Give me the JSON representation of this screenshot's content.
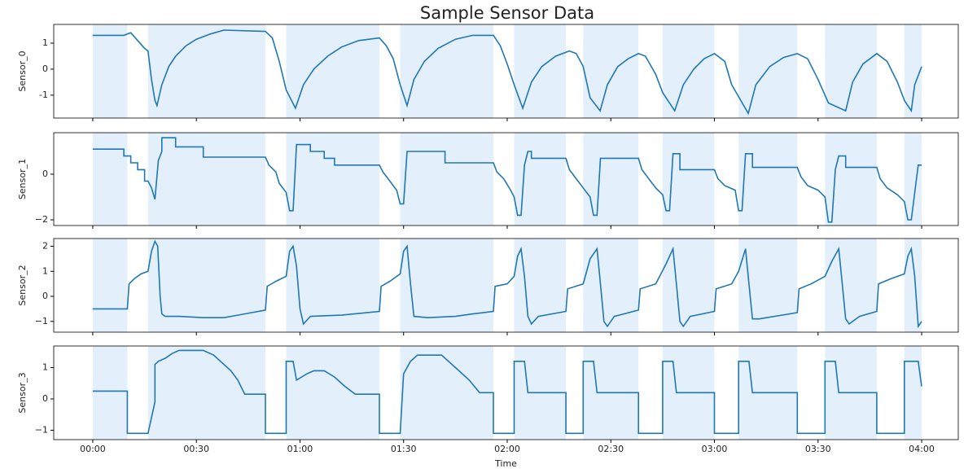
{
  "chart_data": [
    {
      "type": "line",
      "title": "Sample Sensor Data",
      "y_label": "Sensor_0",
      "color": "#1f77b4",
      "shade_color": "#e3f0fc",
      "xlim": [
        -11.3,
        250.6
      ],
      "xticks": [
        0,
        30,
        60,
        90,
        120,
        150,
        180,
        210,
        240
      ],
      "ylim": [
        -1.88,
        1.72
      ],
      "yticks": [
        -1,
        0,
        1
      ],
      "shaded_regions": [
        [
          0,
          10
        ],
        [
          16,
          50
        ],
        [
          56,
          83
        ],
        [
          89,
          116
        ],
        [
          122,
          137
        ],
        [
          142,
          158
        ],
        [
          165,
          180
        ],
        [
          187,
          204
        ],
        [
          212,
          227
        ],
        [
          235,
          240
        ]
      ],
      "x": [
        0,
        9,
        11,
        13,
        15,
        16,
        17,
        18,
        18.6,
        20,
        22,
        24,
        27,
        30,
        34,
        38,
        50,
        52,
        54,
        56,
        58.7,
        61,
        64,
        68,
        72,
        77,
        83,
        85,
        87,
        89,
        91,
        93,
        96,
        100,
        105,
        110,
        116,
        118,
        120,
        122,
        124.5,
        127,
        130,
        134,
        138,
        140,
        142,
        144,
        146.9,
        149,
        152,
        155,
        158,
        160,
        163,
        165,
        168.5,
        171,
        174,
        177,
        180,
        183,
        185,
        189.8,
        192,
        196,
        200,
        204,
        207,
        210,
        213,
        218,
        220,
        223,
        227,
        230,
        233,
        235,
        237,
        238,
        240
      ],
      "values": [
        1.3,
        1.3,
        1.4,
        1.1,
        0.8,
        0.7,
        -0.4,
        -1.2,
        -1.4,
        -0.6,
        0.1,
        0.5,
        0.9,
        1.15,
        1.35,
        1.5,
        1.45,
        1.2,
        0.3,
        -0.8,
        -1.5,
        -0.6,
        0,
        0.5,
        0.85,
        1.1,
        1.2,
        0.9,
        0.4,
        -0.6,
        -1.4,
        -0.4,
        0.3,
        0.8,
        1.15,
        1.3,
        1.3,
        0.9,
        0.2,
        -0.6,
        -1.5,
        -0.5,
        0.1,
        0.5,
        0.7,
        0.6,
        0.1,
        -1.1,
        -1.6,
        -0.6,
        0.1,
        0.4,
        0.6,
        0.5,
        -0.2,
        -0.9,
        -1.6,
        -0.6,
        0,
        0.4,
        0.6,
        0.3,
        -0.6,
        -1.7,
        -0.6,
        0.1,
        0.45,
        0.6,
        0.4,
        -0.4,
        -1.3,
        -1.6,
        -0.5,
        0.2,
        0.6,
        0.3,
        -0.5,
        -1.2,
        -1.6,
        -0.6,
        0.1
      ]
    },
    {
      "type": "line",
      "y_label": "Sensor_1",
      "color": "#1f77b4",
      "shade_color": "#e3f0fc",
      "xlim": [
        -11.3,
        250.6
      ],
      "xticks": [
        0,
        30,
        60,
        90,
        120,
        150,
        180,
        210,
        240
      ],
      "ylim": [
        -2.25,
        1.82
      ],
      "yticks": [
        {
          "value": -2,
          "label": "−2"
        },
        0
      ],
      "shaded_regions": [
        [
          0,
          10
        ],
        [
          16,
          50
        ],
        [
          56,
          83
        ],
        [
          89,
          116
        ],
        [
          122,
          137
        ],
        [
          142,
          158
        ],
        [
          165,
          180
        ],
        [
          187,
          204
        ],
        [
          212,
          227
        ],
        [
          235,
          240
        ]
      ],
      "x": [
        0,
        9,
        9,
        11,
        11,
        13,
        13,
        15,
        15,
        16,
        17,
        18,
        19,
        20,
        20,
        24,
        24,
        32,
        32,
        50,
        51,
        53,
        54,
        56,
        57,
        58,
        59,
        63,
        63,
        67,
        67,
        70,
        70,
        83,
        84,
        86,
        88,
        89,
        90,
        91,
        102,
        102,
        116,
        117,
        119,
        121,
        122,
        123,
        124,
        125,
        126,
        127,
        127,
        137,
        138,
        140,
        142,
        144,
        145,
        146,
        147,
        158,
        159,
        161,
        163,
        165,
        166,
        167,
        168,
        170,
        170,
        180,
        181,
        183,
        186,
        187,
        188,
        189,
        191,
        191,
        204,
        205,
        207,
        210,
        212,
        213,
        214,
        215,
        216,
        218,
        218,
        227,
        228,
        230,
        233,
        235,
        236,
        237,
        239,
        240
      ],
      "values": [
        1.1,
        1.1,
        0.8,
        0.8,
        0.5,
        0.5,
        0.2,
        0.2,
        -0.3,
        -0.3,
        -0.6,
        -1.1,
        0.6,
        1.0,
        1.6,
        1.6,
        1.2,
        1.2,
        0.75,
        0.75,
        0.4,
        0.1,
        -0.4,
        -0.8,
        -1.6,
        -1.6,
        1.3,
        1.3,
        1.0,
        1.0,
        0.7,
        0.7,
        0.4,
        0.4,
        0.1,
        -0.3,
        -0.7,
        -1.3,
        -1.3,
        1.0,
        1.0,
        0.5,
        0.5,
        0.1,
        -0.2,
        -0.7,
        -1.0,
        -1.8,
        -1.8,
        0.4,
        1.0,
        1.0,
        0.7,
        0.7,
        0.2,
        -0.2,
        -0.6,
        -1.0,
        -1.8,
        -1.8,
        0.7,
        0.7,
        0.2,
        -0.2,
        -0.6,
        -0.9,
        -1.6,
        -1.6,
        0.9,
        0.9,
        0.2,
        0.2,
        -0.2,
        -0.5,
        -0.7,
        -1.6,
        -1.6,
        0.9,
        0.9,
        0.3,
        0.3,
        -0.1,
        -0.5,
        -0.7,
        -1.0,
        -2.1,
        -2.1,
        0.2,
        0.8,
        0.8,
        0.3,
        0.3,
        -0.2,
        -0.6,
        -0.9,
        -1.2,
        -2.0,
        -2.0,
        0.4,
        0.4
      ]
    },
    {
      "type": "line",
      "y_label": "Sensor_2",
      "color": "#1f77b4",
      "shade_color": "#e3f0fc",
      "xlim": [
        -11.3,
        250.6
      ],
      "xticks": [
        0,
        30,
        60,
        90,
        120,
        150,
        180,
        210,
        240
      ],
      "ylim": [
        -1.43,
        2.31
      ],
      "yticks": [
        {
          "value": -1,
          "label": "−1"
        },
        0,
        1,
        2
      ],
      "shaded_regions": [
        [
          0,
          10
        ],
        [
          16,
          50
        ],
        [
          56,
          83
        ],
        [
          89,
          116
        ],
        [
          122,
          137
        ],
        [
          142,
          158
        ],
        [
          165,
          180
        ],
        [
          187,
          204
        ],
        [
          212,
          227
        ],
        [
          235,
          240
        ]
      ],
      "x": [
        0,
        10,
        10.5,
        12,
        14,
        16,
        17,
        18,
        18.8,
        19.5,
        20,
        21,
        25,
        32,
        38,
        42,
        46,
        50,
        50.5,
        53,
        56,
        57,
        58,
        59,
        60,
        61,
        63,
        72,
        83,
        83.5,
        86,
        89,
        90,
        91,
        92,
        93,
        97,
        105,
        110,
        116,
        116.5,
        120,
        122,
        123,
        124,
        125,
        126,
        127,
        129,
        137,
        137.5,
        142,
        144,
        146,
        147,
        148,
        149,
        151,
        158,
        158.5,
        163,
        166,
        168,
        169,
        170,
        171,
        173,
        180,
        180.5,
        185,
        187,
        189,
        190,
        191,
        193,
        204,
        204.5,
        208,
        212,
        214,
        216,
        217,
        218,
        219,
        222,
        227,
        227.5,
        231,
        235,
        236,
        237,
        238,
        239,
        240
      ],
      "values": [
        -0.5,
        -0.5,
        0.5,
        0.7,
        0.9,
        1.0,
        1.8,
        2.2,
        2.0,
        0,
        -0.7,
        -0.8,
        -0.8,
        -0.85,
        -0.85,
        -0.75,
        -0.65,
        -0.55,
        0.4,
        0.6,
        0.8,
        1.8,
        2.0,
        1.2,
        -0.5,
        -1.1,
        -0.8,
        -0.75,
        -0.6,
        0.4,
        0.6,
        0.9,
        1.8,
        2.0,
        0.5,
        -0.8,
        -0.85,
        -0.8,
        -0.7,
        -0.6,
        0.4,
        0.5,
        0.8,
        1.6,
        1.9,
        0.8,
        -0.8,
        -1.1,
        -0.8,
        -0.6,
        0.3,
        0.5,
        1.5,
        1.9,
        0.5,
        -1.0,
        -1.2,
        -0.8,
        -0.55,
        0.3,
        0.5,
        1.3,
        1.9,
        0.5,
        -1.0,
        -1.2,
        -0.8,
        -0.6,
        0.3,
        0.5,
        1.0,
        1.9,
        0.5,
        -0.9,
        -0.9,
        -0.65,
        0.3,
        0.5,
        0.8,
        1.4,
        1.9,
        0.5,
        -0.9,
        -1.1,
        -0.8,
        -0.6,
        0.5,
        0.7,
        0.9,
        1.6,
        1.9,
        0.8,
        -1.2,
        -1.0
      ]
    },
    {
      "type": "line",
      "y_label": "Sensor_3",
      "x_label": "Time",
      "color": "#1f77b4",
      "shade_color": "#e3f0fc",
      "xlim": [
        -11.3,
        250.6
      ],
      "xticks": [
        {
          "value": 0,
          "label": "00:00"
        },
        {
          "value": 30,
          "label": "00:30"
        },
        {
          "value": 60,
          "label": "01:00"
        },
        {
          "value": 90,
          "label": "01:30"
        },
        {
          "value": 120,
          "label": "02:00"
        },
        {
          "value": 150,
          "label": "02:30"
        },
        {
          "value": 180,
          "label": "03:00"
        },
        {
          "value": 210,
          "label": "03:30"
        },
        {
          "value": 240,
          "label": "04:00"
        }
      ],
      "ylim": [
        -1.3,
        1.69
      ],
      "yticks": [
        {
          "value": -1,
          "label": "−1"
        },
        0,
        1
      ],
      "shaded_regions": [
        [
          0,
          10
        ],
        [
          16,
          50
        ],
        [
          56,
          83
        ],
        [
          89,
          116
        ],
        [
          122,
          137
        ],
        [
          142,
          158
        ],
        [
          165,
          180
        ],
        [
          187,
          204
        ],
        [
          212,
          227
        ],
        [
          235,
          240
        ]
      ],
      "x": [
        0,
        10,
        10,
        16,
        18,
        18,
        19,
        21,
        23,
        25,
        32,
        35,
        38,
        40,
        42,
        44,
        50,
        50,
        56,
        56,
        58,
        59,
        62,
        64,
        67,
        70,
        73,
        76,
        83,
        83,
        89,
        90,
        92,
        94,
        101,
        105,
        109,
        112,
        116,
        116,
        122,
        122,
        125,
        126,
        137,
        137,
        142,
        142,
        145,
        146,
        158,
        158,
        165,
        165,
        168,
        169,
        180,
        180,
        187,
        187,
        190,
        191,
        204,
        204,
        212,
        212,
        215,
        216,
        227,
        227,
        235,
        235,
        239,
        240
      ],
      "values": [
        0.25,
        0.25,
        -1.1,
        -1.1,
        -0.1,
        1.1,
        1.2,
        1.3,
        1.45,
        1.55,
        1.55,
        1.4,
        1.1,
        0.9,
        0.6,
        0.15,
        0.15,
        -1.1,
        -1.1,
        1.2,
        1.2,
        0.6,
        0.8,
        0.9,
        0.9,
        0.7,
        0.4,
        0.15,
        0.15,
        -1.1,
        -1.1,
        0.8,
        1.2,
        1.4,
        1.4,
        1.0,
        0.6,
        0.2,
        0.2,
        -1.1,
        -1.1,
        1.2,
        1.2,
        0.2,
        0.2,
        -1.1,
        -1.1,
        1.2,
        1.2,
        0.2,
        0.2,
        -1.1,
        -1.1,
        1.2,
        1.2,
        0.2,
        0.2,
        -1.1,
        -1.1,
        1.2,
        1.2,
        0.2,
        0.2,
        -1.1,
        -1.1,
        1.2,
        1.2,
        0.2,
        0.2,
        -1.1,
        -1.1,
        1.2,
        1.2,
        0.4
      ]
    }
  ]
}
